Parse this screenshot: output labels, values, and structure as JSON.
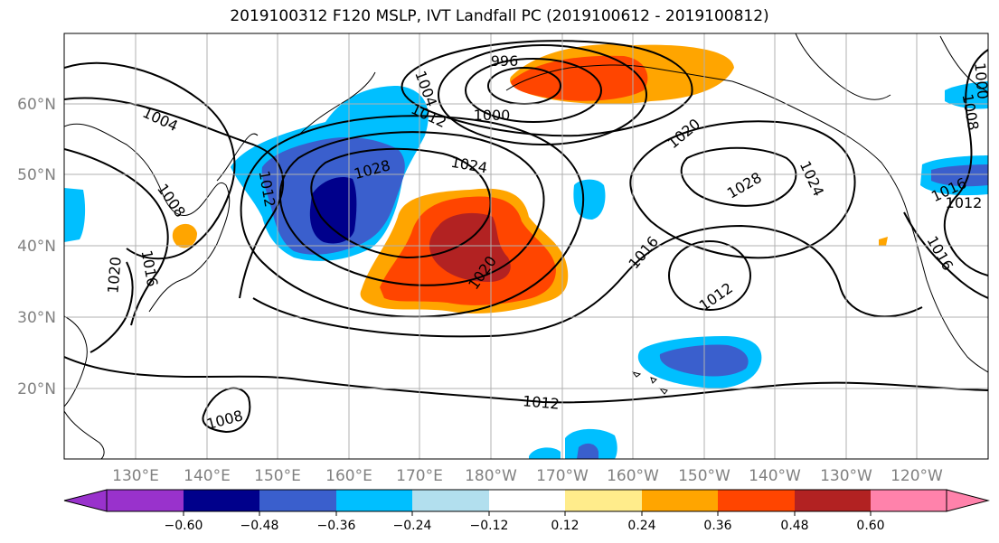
{
  "title": "2019100312 F120 MSLP, IVT Landfall PC (2019100612 - 2019100812)",
  "lat_labels": [
    "60°N",
    "50°N",
    "40°N",
    "30°N",
    "20°N"
  ],
  "lon_labels": [
    "130°E",
    "140°E",
    "150°E",
    "160°E",
    "170°E",
    "180°W",
    "170°W",
    "160°W",
    "150°W",
    "140°W",
    "130°W",
    "120°W"
  ],
  "contour_labels": [
    {
      "text": "996"
    },
    {
      "text": "1000"
    },
    {
      "text": "1004"
    },
    {
      "text": "1004"
    },
    {
      "text": "1012"
    },
    {
      "text": "1024"
    },
    {
      "text": "1028"
    },
    {
      "text": "1012"
    },
    {
      "text": "1008"
    },
    {
      "text": "1016"
    },
    {
      "text": "1020"
    },
    {
      "text": "1020"
    },
    {
      "text": "1016"
    },
    {
      "text": "1020"
    },
    {
      "text": "1016"
    },
    {
      "text": "1012"
    },
    {
      "text": "1028"
    },
    {
      "text": "1024"
    },
    {
      "text": "1016"
    },
    {
      "text": "1012"
    },
    {
      "text": "1008"
    },
    {
      "text": "1012"
    },
    {
      "text": "1008"
    },
    {
      "text": "1000"
    }
  ],
  "colorbar": {
    "ticks": [
      "−0.60",
      "−0.48",
      "−0.36",
      "−0.24",
      "−0.12",
      "0.12",
      "0.24",
      "0.36",
      "0.48",
      "0.60"
    ],
    "colors": [
      "#9932cc",
      "#00008b",
      "#3a5fcd",
      "#00bfff",
      "#b2dfee",
      "#ffffff",
      "#ffec8b",
      "#ffa500",
      "#ff4500",
      "#b22222",
      "#ff82ab"
    ]
  },
  "colors": {
    "grid": "#b0b0b0",
    "axis_label": "#808080"
  }
}
